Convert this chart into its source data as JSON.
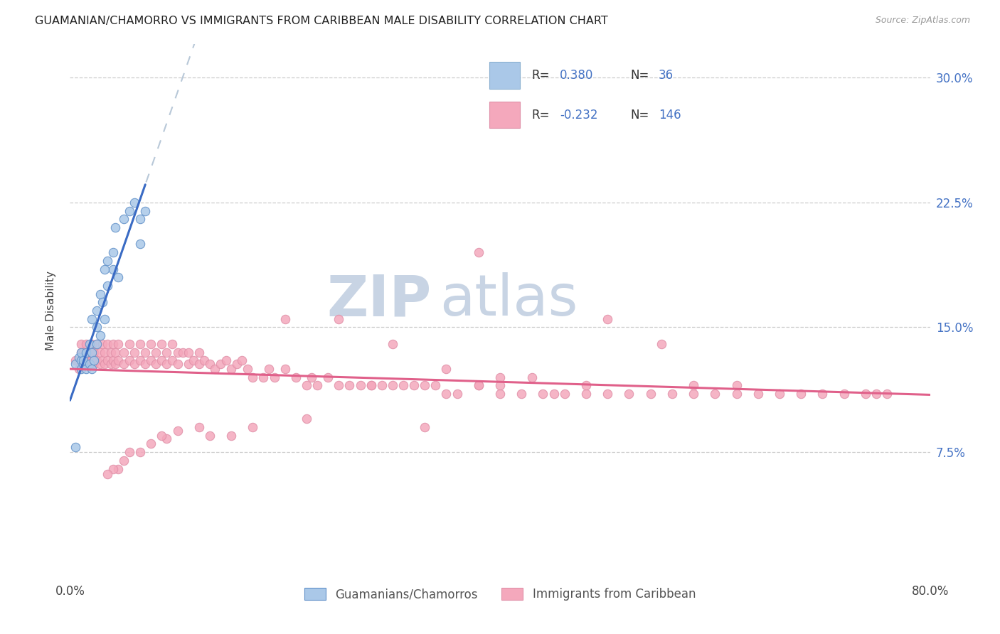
{
  "title": "GUAMANIAN/CHAMORRO VS IMMIGRANTS FROM CARIBBEAN MALE DISABILITY CORRELATION CHART",
  "source": "Source: ZipAtlas.com",
  "ylabel": "Male Disability",
  "xmin": 0.0,
  "xmax": 0.8,
  "ymin": 0.0,
  "ymax": 0.32,
  "ytick_positions": [
    0.075,
    0.15,
    0.225,
    0.3
  ],
  "ytick_labels": [
    "7.5%",
    "15.0%",
    "22.5%",
    "30.0%"
  ],
  "xtick_positions": [
    0.0,
    0.16,
    0.32,
    0.48,
    0.64,
    0.8
  ],
  "xtick_labels": [
    "0.0%",
    "",
    "",
    "",
    "",
    "80.0%"
  ],
  "color_blue": "#aac8e8",
  "color_pink": "#f4a8bc",
  "line_blue": "#3a6bc4",
  "line_pink": "#e0608a",
  "line_dash_color": "#b8c8d8",
  "text_blue": "#4472c4",
  "watermark_zip": "ZIP",
  "watermark_atlas": "atlas",
  "watermark_color": "#c8d4e4",
  "blue_x": [
    0.005,
    0.008,
    0.01,
    0.01,
    0.01,
    0.012,
    0.012,
    0.015,
    0.015,
    0.018,
    0.018,
    0.02,
    0.02,
    0.02,
    0.022,
    0.025,
    0.025,
    0.025,
    0.028,
    0.028,
    0.03,
    0.032,
    0.032,
    0.035,
    0.035,
    0.04,
    0.04,
    0.042,
    0.045,
    0.05,
    0.055,
    0.06,
    0.065,
    0.065,
    0.07,
    0.005
  ],
  "blue_y": [
    0.128,
    0.132,
    0.125,
    0.13,
    0.135,
    0.128,
    0.13,
    0.125,
    0.135,
    0.128,
    0.14,
    0.125,
    0.135,
    0.155,
    0.13,
    0.14,
    0.15,
    0.16,
    0.145,
    0.17,
    0.165,
    0.155,
    0.185,
    0.175,
    0.19,
    0.185,
    0.195,
    0.21,
    0.18,
    0.215,
    0.22,
    0.225,
    0.2,
    0.215,
    0.22,
    0.078
  ],
  "pink_x": [
    0.005,
    0.008,
    0.01,
    0.01,
    0.012,
    0.012,
    0.015,
    0.015,
    0.018,
    0.018,
    0.02,
    0.02,
    0.022,
    0.022,
    0.025,
    0.025,
    0.028,
    0.028,
    0.03,
    0.03,
    0.032,
    0.032,
    0.035,
    0.035,
    0.038,
    0.038,
    0.04,
    0.04,
    0.042,
    0.042,
    0.045,
    0.045,
    0.05,
    0.05,
    0.055,
    0.055,
    0.06,
    0.06,
    0.065,
    0.065,
    0.07,
    0.07,
    0.075,
    0.075,
    0.08,
    0.08,
    0.085,
    0.085,
    0.09,
    0.09,
    0.095,
    0.095,
    0.1,
    0.1,
    0.105,
    0.11,
    0.11,
    0.115,
    0.12,
    0.12,
    0.125,
    0.13,
    0.135,
    0.14,
    0.145,
    0.15,
    0.155,
    0.16,
    0.165,
    0.17,
    0.18,
    0.185,
    0.19,
    0.2,
    0.2,
    0.21,
    0.22,
    0.225,
    0.23,
    0.24,
    0.25,
    0.26,
    0.27,
    0.28,
    0.29,
    0.3,
    0.31,
    0.32,
    0.33,
    0.34,
    0.35,
    0.36,
    0.38,
    0.38,
    0.4,
    0.4,
    0.42,
    0.44,
    0.45,
    0.46,
    0.48,
    0.5,
    0.52,
    0.54,
    0.56,
    0.58,
    0.6,
    0.62,
    0.64,
    0.66,
    0.68,
    0.7,
    0.72,
    0.74,
    0.75,
    0.76,
    0.58,
    0.62,
    0.25,
    0.3,
    0.28,
    0.35,
    0.4,
    0.38,
    0.5,
    0.55,
    0.43,
    0.48,
    0.33,
    0.22,
    0.17,
    0.15,
    0.13,
    0.12,
    0.1,
    0.09,
    0.085,
    0.075,
    0.065,
    0.055,
    0.05,
    0.045,
    0.04,
    0.035
  ],
  "pink_y": [
    0.13,
    0.125,
    0.135,
    0.14,
    0.128,
    0.135,
    0.13,
    0.14,
    0.128,
    0.135,
    0.13,
    0.14,
    0.128,
    0.135,
    0.13,
    0.14,
    0.128,
    0.135,
    0.13,
    0.14,
    0.128,
    0.135,
    0.13,
    0.14,
    0.128,
    0.135,
    0.13,
    0.14,
    0.128,
    0.135,
    0.13,
    0.14,
    0.128,
    0.135,
    0.13,
    0.14,
    0.128,
    0.135,
    0.13,
    0.14,
    0.128,
    0.135,
    0.13,
    0.14,
    0.128,
    0.135,
    0.13,
    0.14,
    0.128,
    0.135,
    0.13,
    0.14,
    0.128,
    0.135,
    0.135,
    0.128,
    0.135,
    0.13,
    0.128,
    0.135,
    0.13,
    0.128,
    0.125,
    0.128,
    0.13,
    0.125,
    0.128,
    0.13,
    0.125,
    0.12,
    0.12,
    0.125,
    0.12,
    0.125,
    0.155,
    0.12,
    0.115,
    0.12,
    0.115,
    0.12,
    0.115,
    0.115,
    0.115,
    0.115,
    0.115,
    0.115,
    0.115,
    0.115,
    0.115,
    0.115,
    0.11,
    0.11,
    0.115,
    0.195,
    0.11,
    0.115,
    0.11,
    0.11,
    0.11,
    0.11,
    0.11,
    0.11,
    0.11,
    0.11,
    0.11,
    0.11,
    0.11,
    0.11,
    0.11,
    0.11,
    0.11,
    0.11,
    0.11,
    0.11,
    0.11,
    0.11,
    0.115,
    0.115,
    0.155,
    0.14,
    0.115,
    0.125,
    0.12,
    0.115,
    0.155,
    0.14,
    0.12,
    0.115,
    0.09,
    0.095,
    0.09,
    0.085,
    0.085,
    0.09,
    0.088,
    0.083,
    0.085,
    0.08,
    0.075,
    0.075,
    0.07,
    0.065,
    0.065,
    0.062
  ]
}
